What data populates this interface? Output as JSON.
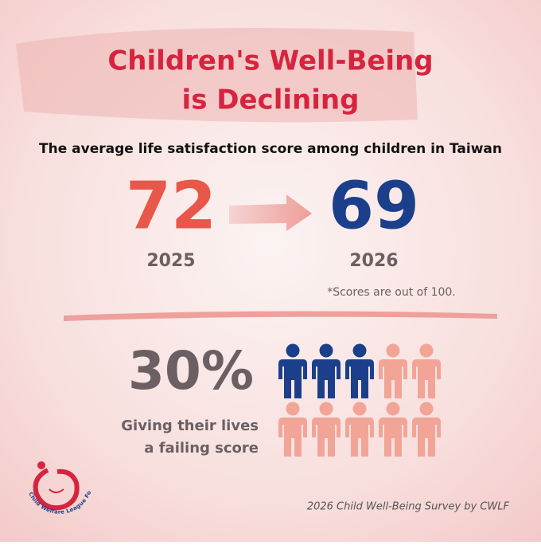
{
  "header": {
    "title_lines": [
      "Children's Well-Being",
      "is Declining"
    ],
    "subtitle": "The average life satisfaction score among children in Taiwan"
  },
  "comparison": {
    "from": {
      "value": "72",
      "year": "2025",
      "color": "#e8574a"
    },
    "to": {
      "value": "69",
      "year": "2026",
      "color": "#1c3f8c"
    },
    "note": "*Scores are out of 100."
  },
  "failing": {
    "percent": "30%",
    "caption_lines": [
      "Giving their lives",
      "a failing score"
    ]
  },
  "pictogram": {
    "count": 10,
    "highlighted": 3,
    "highlight_color": "#1c3f8c",
    "base_color": "#f2a497"
  },
  "logo": {
    "text": "Child Welfare League Foundation"
  },
  "footer": {
    "source": "2026 Child Well-Being Survey by CWLF"
  }
}
